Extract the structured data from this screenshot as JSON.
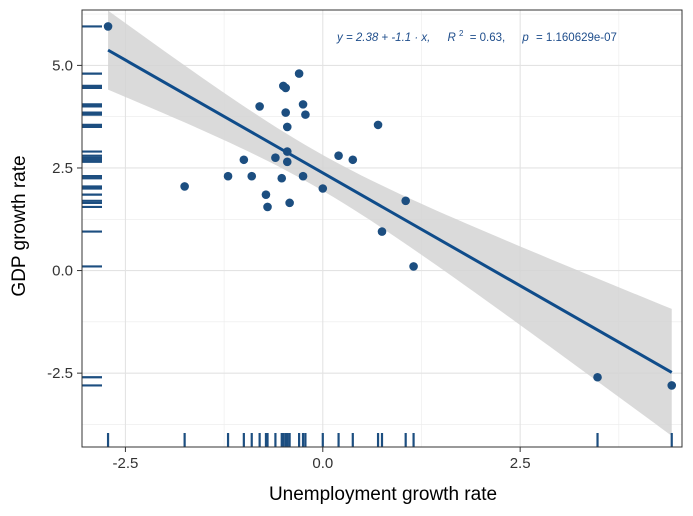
{
  "chart_data": {
    "type": "scatter",
    "title": "",
    "xlabel": "Unemployment growth rate",
    "ylabel": "GDP growth rate",
    "xlim": [
      -3.05,
      4.55
    ],
    "ylim": [
      -4.3,
      6.35
    ],
    "x_ticks": [
      -2.5,
      0.0,
      2.5
    ],
    "x_tick_labels": [
      "-2.5",
      "0.0",
      "2.5"
    ],
    "y_ticks": [
      -2.5,
      0.0,
      2.5,
      5.0
    ],
    "y_tick_labels": [
      "-2.5",
      "0.0",
      "2.5",
      "5.0"
    ],
    "grid": true,
    "rug": true,
    "annotation": {
      "equation": "y = 2.38 + -1.1 · x,",
      "r2_label": "R",
      "r2_exp": "2",
      "r2_value": "= 0.63,",
      "p_label": "p",
      "p_value": "= 1.160629e-07"
    },
    "regression": {
      "intercept": 2.38,
      "slope": -1.1,
      "x_range": [
        -2.72,
        4.42
      ]
    },
    "points": [
      {
        "x": -2.72,
        "y": 5.95
      },
      {
        "x": -1.75,
        "y": 2.05
      },
      {
        "x": -1.2,
        "y": 2.3
      },
      {
        "x": -1.0,
        "y": 2.7
      },
      {
        "x": -0.9,
        "y": 2.3
      },
      {
        "x": -0.8,
        "y": 4.0
      },
      {
        "x": -0.72,
        "y": 1.85
      },
      {
        "x": -0.7,
        "y": 1.55
      },
      {
        "x": -0.6,
        "y": 2.75
      },
      {
        "x": -0.52,
        "y": 2.25
      },
      {
        "x": -0.5,
        "y": 4.5
      },
      {
        "x": -0.47,
        "y": 4.45
      },
      {
        "x": -0.47,
        "y": 3.85
      },
      {
        "x": -0.45,
        "y": 3.5
      },
      {
        "x": -0.45,
        "y": 2.9
      },
      {
        "x": -0.45,
        "y": 2.65
      },
      {
        "x": -0.42,
        "y": 1.65
      },
      {
        "x": -0.3,
        "y": 4.8
      },
      {
        "x": -0.25,
        "y": 4.05
      },
      {
        "x": -0.22,
        "y": 3.8
      },
      {
        "x": -0.25,
        "y": 2.3
      },
      {
        "x": 0.0,
        "y": 2.0
      },
      {
        "x": 0.2,
        "y": 2.8
      },
      {
        "x": 0.38,
        "y": 2.7
      },
      {
        "x": 0.7,
        "y": 3.55
      },
      {
        "x": 0.75,
        "y": 0.95
      },
      {
        "x": 1.05,
        "y": 1.7
      },
      {
        "x": 1.15,
        "y": 0.1
      },
      {
        "x": 3.48,
        "y": -2.6
      },
      {
        "x": 4.42,
        "y": -2.8
      }
    ],
    "colors": {
      "point": "#1c4e80",
      "line": "#0f4c8a",
      "band": "#d4d4d4",
      "grid": "#ebebeb",
      "panel_border": "#333333"
    }
  }
}
